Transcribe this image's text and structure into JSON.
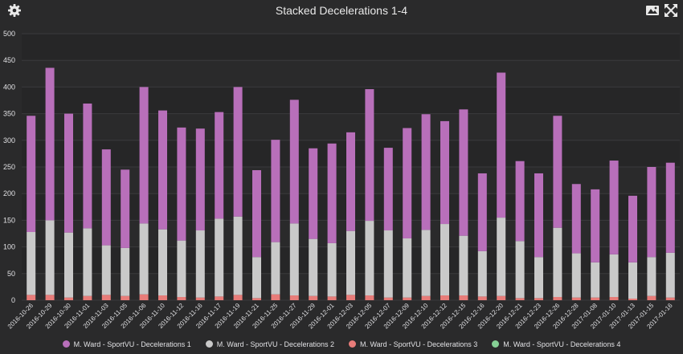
{
  "header": {
    "title": "Stacked Decelerations 1-4",
    "icons": [
      "gear-icon",
      "image-icon",
      "fullscreen-icon"
    ]
  },
  "chart_data": {
    "type": "bar",
    "stacked": true,
    "title": "Stacked Decelerations 1-4",
    "ylim": [
      0,
      500
    ],
    "yticks": [
      0,
      50,
      100,
      150,
      200,
      250,
      300,
      350,
      400,
      450,
      500
    ],
    "grid": true,
    "legend_position": "bottom",
    "categories": [
      "2016-10-26",
      "2016-10-29",
      "2016-10-30",
      "2016-11-01",
      "2016-11-03",
      "2016-11-05",
      "2016-11-06",
      "2016-11-10",
      "2016-11-12",
      "2016-11-16",
      "2016-11-17",
      "2016-11-19",
      "2016-11-21",
      "2016-11-25",
      "2016-11-27",
      "2016-11-29",
      "2016-12-01",
      "2016-12-03",
      "2016-12-05",
      "2016-12-07",
      "2016-12-09",
      "2016-12-10",
      "2016-12-12",
      "2016-12-15",
      "2016-12-16",
      "2016-12-20",
      "2016-12-21",
      "2016-12-23",
      "2016-12-26",
      "2016-12-28",
      "2017-01-08",
      "2017-01-10",
      "2017-01-13",
      "2017-01-15",
      "2017-01-16"
    ],
    "series": [
      {
        "name": "M. Ward - SportVU - Decelerations 1",
        "color": "#b86fba",
        "values": [
          218,
          286,
          223,
          234,
          180,
          147,
          256,
          223,
          212,
          191,
          200,
          243,
          163,
          192,
          232,
          170,
          187,
          185,
          247,
          155,
          207,
          217,
          193,
          237,
          146,
          272,
          150,
          157,
          210,
          130,
          137,
          176,
          125,
          169,
          169
        ]
      },
      {
        "name": "M. Ward - SportVU - Decelerations 2",
        "color": "#c9c9c9",
        "values": [
          118,
          140,
          122,
          127,
          93,
          90,
          133,
          124,
          106,
          126,
          146,
          147,
          77,
          98,
          135,
          107,
          100,
          120,
          140,
          126,
          111,
          124,
          134,
          112,
          85,
          147,
          107,
          77,
          130,
          83,
          66,
          80,
          68,
          73,
          84
        ]
      },
      {
        "name": "M. Ward - SportVU - Decelerations 3",
        "color": "#e87c79",
        "values": [
          10,
          10,
          5,
          8,
          10,
          8,
          11,
          9,
          6,
          5,
          7,
          10,
          4,
          11,
          9,
          8,
          7,
          10,
          9,
          5,
          5,
          8,
          9,
          9,
          7,
          8,
          4,
          4,
          6,
          5,
          5,
          6,
          3,
          8,
          5
        ]
      },
      {
        "name": "M. Ward - SportVU - Decelerations 4",
        "color": "#86d095",
        "values": [
          0,
          0,
          0,
          0,
          0,
          0,
          0,
          0,
          0,
          0,
          0,
          0,
          0,
          0,
          0,
          0,
          0,
          0,
          0,
          0,
          0,
          0,
          0,
          0,
          0,
          0,
          0,
          0,
          0,
          0,
          0,
          0,
          0,
          0,
          0
        ]
      }
    ]
  },
  "colors": {
    "background": "#2a2a2b",
    "plot_band": "#262627",
    "grid": "#3a3a3c",
    "text": "#e0e0e3"
  }
}
